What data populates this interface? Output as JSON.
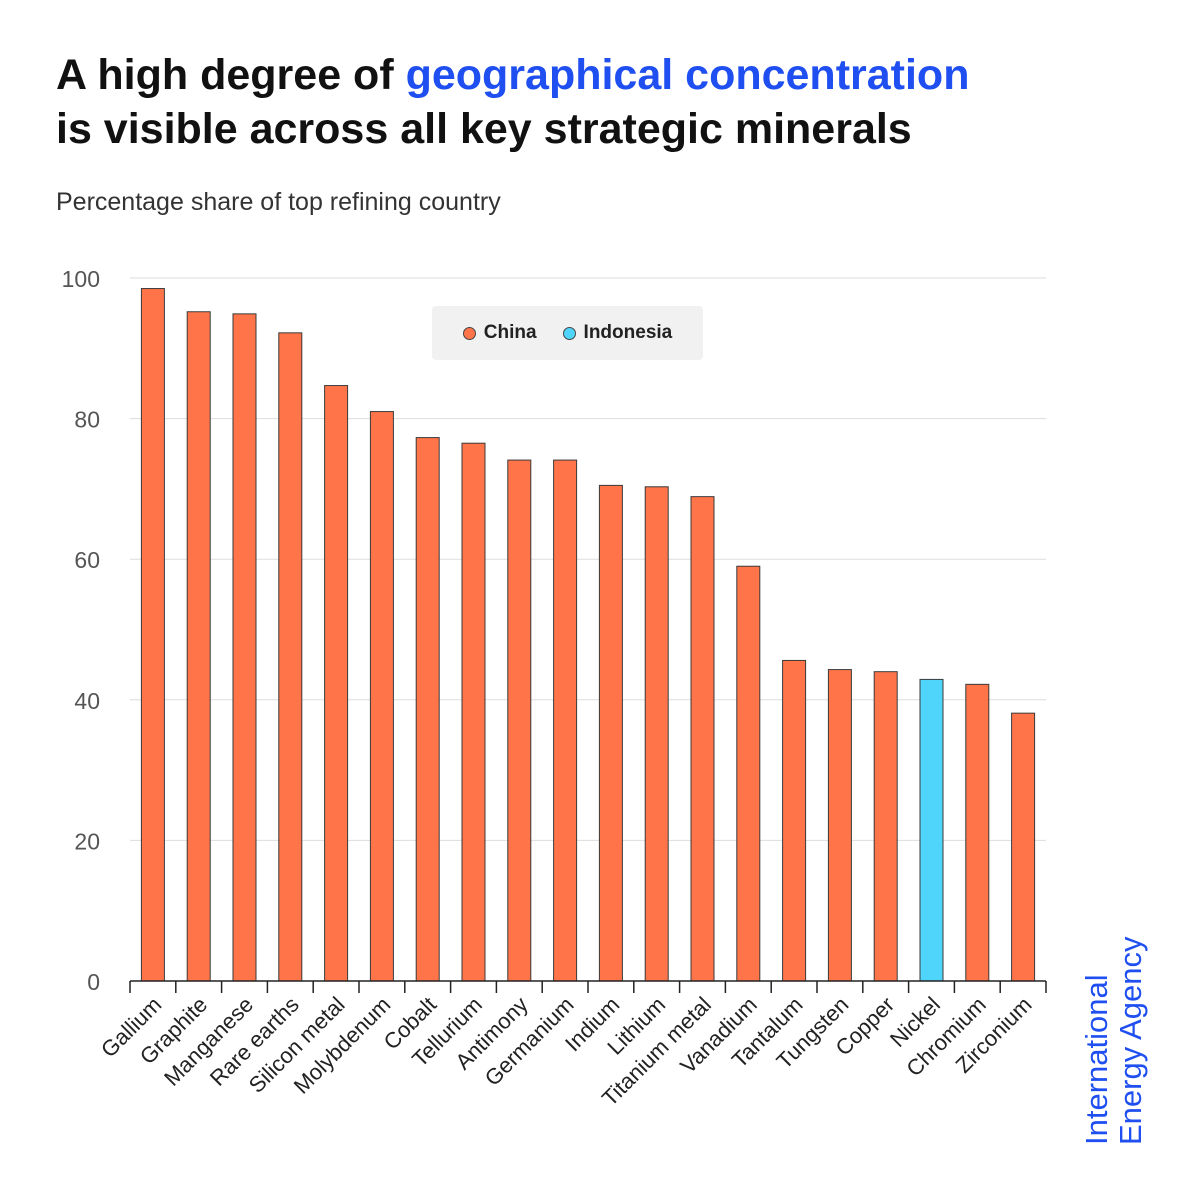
{
  "header": {
    "title_part1": "A high degree of ",
    "title_highlight": "geographical concentration",
    "title_part2": "is visible across all key strategic minerals",
    "subtitle": "Percentage share of top refining country"
  },
  "branding": {
    "line1": "International",
    "line2": "Energy Agency"
  },
  "colors": {
    "china": "#ff7448",
    "indonesia": "#4fd5fb",
    "highlight": "#1f4ff0"
  },
  "chart_data": {
    "type": "bar",
    "title": "A high degree of geographical concentration is visible across all key strategic minerals",
    "subtitle": "Percentage share of top refining country",
    "xlabel": "",
    "ylabel": "",
    "ylim": [
      0,
      100
    ],
    "yticks": [
      0,
      20,
      40,
      60,
      80,
      100
    ],
    "grid": true,
    "legend_position": "top-center",
    "legend": [
      {
        "name": "China",
        "color": "#ff7448"
      },
      {
        "name": "Indonesia",
        "color": "#4fd5fb"
      }
    ],
    "categories": [
      "Gallium",
      "Graphite",
      "Manganese",
      "Rare earths",
      "Silicon metal",
      "Molybdenum",
      "Cobalt",
      "Tellurium",
      "Antimony",
      "Germanium",
      "Indium",
      "Lithium",
      "Titanium metal",
      "Vanadium",
      "Tantalum",
      "Tungsten",
      "Copper",
      "Nickel",
      "Chromium",
      "Zirconium"
    ],
    "values": [
      98.5,
      95.2,
      94.9,
      92.2,
      84.7,
      81.0,
      77.3,
      76.5,
      74.1,
      74.1,
      70.5,
      70.3,
      68.9,
      59.0,
      45.6,
      44.3,
      44.0,
      42.9,
      42.2,
      38.1
    ],
    "country": [
      "China",
      "China",
      "China",
      "China",
      "China",
      "China",
      "China",
      "China",
      "China",
      "China",
      "China",
      "China",
      "China",
      "China",
      "China",
      "China",
      "China",
      "Indonesia",
      "China",
      "China"
    ]
  }
}
